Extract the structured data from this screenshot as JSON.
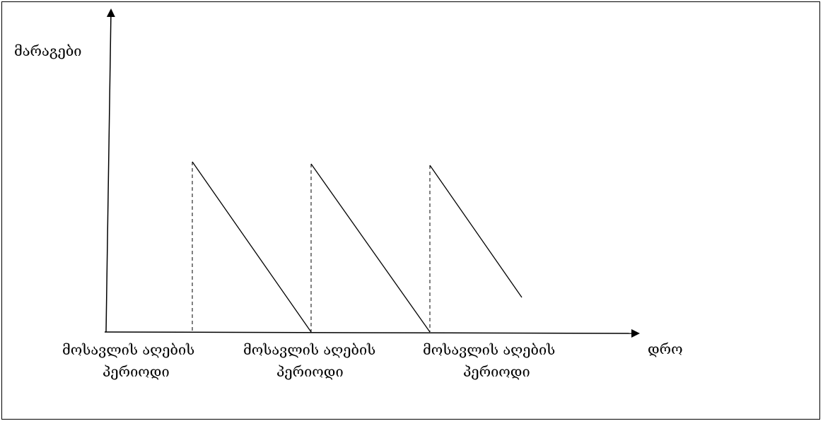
{
  "diagram": {
    "y_axis_label": "მარაგები",
    "x_axis_label": "დრო",
    "period_labels": [
      {
        "line1": "მოსავლის აღების",
        "line2": "პერიოდი"
      },
      {
        "line1": "მოსავლის აღების",
        "line2": "პერიოდი"
      },
      {
        "line1": "მოსავლის აღების",
        "line2": "პერიოდი"
      }
    ],
    "colors": {
      "stroke": "#000000",
      "background": "#ffffff"
    }
  }
}
